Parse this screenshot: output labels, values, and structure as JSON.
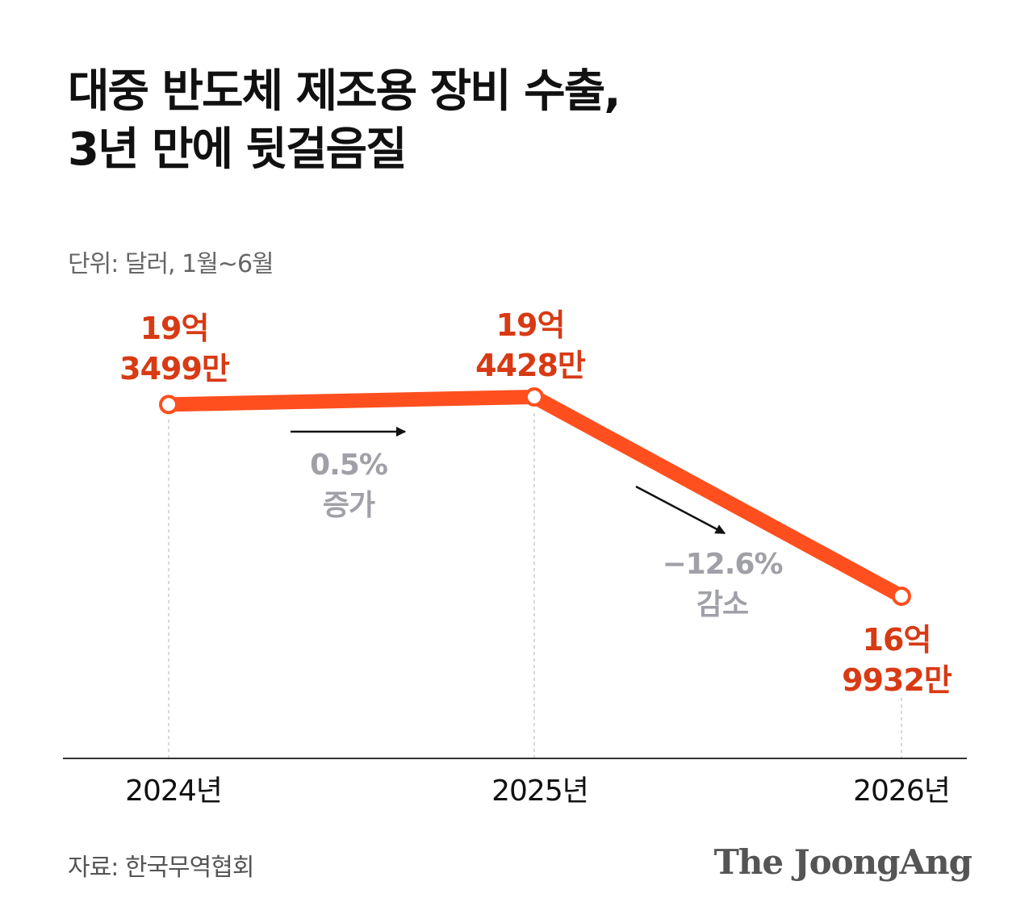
{
  "header": {
    "title_line1": "대중 반도체 제조용 장비 수출,",
    "title_line2": "3년 만에 뒷걸음질",
    "unit": "단위: 달러, 1월~6월"
  },
  "footer": {
    "source": "자료: 한국무역협회",
    "logo": "The JoongAng"
  },
  "colors": {
    "line": "#ff4f1f",
    "value_label": "#d83a14",
    "annotation": "#a0a0a8",
    "axis": "#333333",
    "guide": "#cccccc",
    "arrow": "#111111"
  },
  "chart_data": {
    "type": "line",
    "categories": [
      "2024년",
      "2025년",
      "2026년"
    ],
    "values": [
      1934990000,
      1944280000,
      1699320000
    ],
    "value_labels": [
      [
        "19억",
        "3499만"
      ],
      [
        "19억",
        "4428만"
      ],
      [
        "16억",
        "9932만"
      ]
    ],
    "annotations": [
      {
        "from": 0,
        "to": 1,
        "lines": [
          "0.5%",
          "증가"
        ]
      },
      {
        "from": 1,
        "to": 2,
        "lines": [
          "−12.6%",
          "감소"
        ]
      }
    ],
    "grid": false,
    "legend": "none"
  }
}
